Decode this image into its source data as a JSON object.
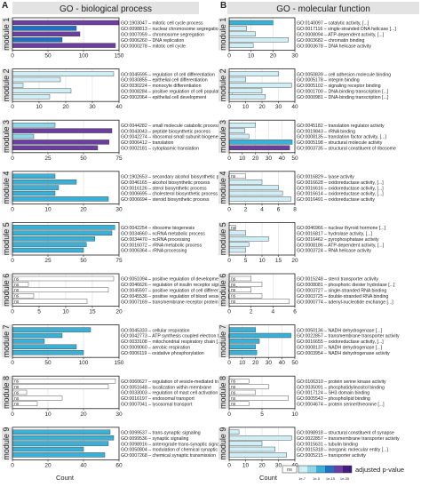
{
  "panels": [
    {
      "letter": "A",
      "title": "GO - biological process",
      "x_label": "Count",
      "legend": null
    },
    {
      "letter": "B",
      "title": "GO - molecular function",
      "x_label": "Count",
      "legend": {
        "ns_label": "ns",
        "title": "adjusted p-value",
        "ticks": [
          "1e-7",
          "1e-5",
          "1e-15",
          "1e-35"
        ]
      }
    }
  ],
  "colors": {
    "ns": "#ffffff",
    "light": "#cfeef5",
    "medium": "#8fd6e8",
    "teal": "#3bb0d6",
    "blue": "#1f6fc2",
    "purple": "#6a3fa0",
    "dark_purple": "#3f1d7a",
    "border": "#222222",
    "grid": "#dddddd"
  },
  "chart_data": [
    {
      "type": "bar",
      "orientation": "horizontal",
      "panel": "A",
      "title": "GO - biological process",
      "xlabel": "Count",
      "modules": [
        {
          "name": "module 1",
          "xlim": [
            0,
            150
          ],
          "xticks": [
            "0",
            "50",
            "100",
            "150"
          ],
          "terms": [
            {
              "label": "GO:1903047 – mitotic cell cycle process",
              "value": 150,
              "color": "purple"
            },
            {
              "label": "GO:0098813 – nuclear chromosome segregation",
              "value": 90,
              "color": "blue"
            },
            {
              "label": "GO:0007059 – chromosome segregation",
              "value": 95,
              "color": "purple"
            },
            {
              "label": "GO:0006260 – DNA replication",
              "value": 70,
              "color": "blue"
            },
            {
              "label": "GO:0000278 – mitotic cell cycle",
              "value": 145,
              "color": "purple"
            }
          ]
        },
        {
          "name": "module 2",
          "xlim": [
            0,
            40
          ],
          "xticks": [
            "0",
            "10",
            "20",
            "30",
            "40"
          ],
          "terms": [
            {
              "label": "GO:0045595 – regulation of cell differentiation",
              "value": 38,
              "color": "light"
            },
            {
              "label": "GO:0030855 – epithelial cell differentiation",
              "value": 18,
              "color": "light"
            },
            {
              "label": "GO:0030224 – monocyte differentiation",
              "value": 4,
              "color": "light"
            },
            {
              "label": "GO:0008284 – positive regulation of cell population [...]",
              "value": 22,
              "color": "light"
            },
            {
              "label": "GO:0002064 – epithelial cell development",
              "value": 14,
              "color": "light"
            }
          ]
        },
        {
          "name": "module 3",
          "xlim": [
            0,
            75
          ],
          "xticks": [
            "0",
            "25",
            "50",
            "75"
          ],
          "terms": [
            {
              "label": "GO:0044282 – small molecule catabolic process",
              "value": 30,
              "color": "medium"
            },
            {
              "label": "GO:0043043 – peptide biosynthetic process",
              "value": 70,
              "color": "purple"
            },
            {
              "label": "GO:0042274 – ribosomal small subunit biogenesis",
              "value": 15,
              "color": "medium"
            },
            {
              "label": "GO:0006412 – translation",
              "value": 68,
              "color": "purple"
            },
            {
              "label": "GO:0002181 – cytoplasmic translation",
              "value": 60,
              "color": "purple"
            }
          ]
        },
        {
          "name": "module 4",
          "xlim": [
            0,
            30
          ],
          "xticks": [
            "0",
            "10",
            "20",
            "30"
          ],
          "terms": [
            {
              "label": "GO:1902653 – secondary alcohol biosynthetic process",
              "value": 12,
              "color": "teal"
            },
            {
              "label": "GO:0046165 – alcohol biosynthetic process",
              "value": 18,
              "color": "teal"
            },
            {
              "label": "GO:0016126 – sterol biosynthetic process",
              "value": 13,
              "color": "teal"
            },
            {
              "label": "GO:0006695 – cholesterol biosynthetic process",
              "value": 12,
              "color": "teal"
            },
            {
              "label": "GO:0006694 – steroid biosynthetic process",
              "value": 27,
              "color": "teal"
            }
          ]
        },
        {
          "name": "module 5",
          "xlim": [
            0,
            75
          ],
          "xticks": [
            "0",
            "25",
            "50",
            "75"
          ],
          "terms": [
            {
              "label": "GO:0042254 – ribosome biogenesis",
              "value": 72,
              "color": "teal"
            },
            {
              "label": "GO:0034660 – ncRNA metabolic process",
              "value": 70,
              "color": "teal"
            },
            {
              "label": "GO:0034470 – ncRNA processing",
              "value": 58,
              "color": "teal"
            },
            {
              "label": "GO:0016072 – rRNA metabolic process",
              "value": 52,
              "color": "teal"
            },
            {
              "label": "GO:0006364 – rRNA processing",
              "value": 50,
              "color": "teal"
            }
          ]
        },
        {
          "name": "module 6",
          "xlim": [
            0,
            20
          ],
          "xticks": [
            "0",
            "5",
            "10",
            "15",
            "20"
          ],
          "terms": [
            {
              "label": "GO:0051094 – positive regulation of developmental [...]",
              "value": 19,
              "color": "ns"
            },
            {
              "label": "GO:0046626 – regulation of insulin receptor signaling [...]",
              "value": 3,
              "color": "ns"
            },
            {
              "label": "GO:0045597 – positive regulation of cell differentiation",
              "value": 18,
              "color": "ns"
            },
            {
              "label": "GO:0045536 – positive regulation of blood vessel [...]",
              "value": 4,
              "color": "ns"
            },
            {
              "label": "GO:0007169 – transmembrane receptor protein [...]",
              "value": 14,
              "color": "ns"
            }
          ]
        },
        {
          "name": "module 7",
          "xlim": [
            0,
            150
          ],
          "xticks": [
            "0",
            "50",
            "100",
            "150"
          ],
          "terms": [
            {
              "label": "GO:0045333 – cellular respiration",
              "value": 110,
              "color": "teal"
            },
            {
              "label": "GO:0042773 – ATP synthesis coupled electron transport",
              "value": 70,
              "color": "teal"
            },
            {
              "label": "GO:0033108 – mitochondrial respiratory chain [...]",
              "value": 45,
              "color": "teal"
            },
            {
              "label": "GO:0009060 – aerobic respiration",
              "value": 90,
              "color": "teal"
            },
            {
              "label": "GO:0006119 – oxidative phosphorylation",
              "value": 100,
              "color": "teal"
            }
          ]
        },
        {
          "name": "module 8",
          "xlim": [
            0,
            30
          ],
          "xticks": [
            "0",
            "10",
            "20",
            "30"
          ],
          "terms": [
            {
              "label": "GO:0060627 – regulation of vesicle-mediated transport",
              "value": 29,
              "color": "ns"
            },
            {
              "label": "GO:0051648 – localization within membrane",
              "value": 27,
              "color": "ns"
            },
            {
              "label": "GO:0033003 – regulation of mast cell activation",
              "value": 4,
              "color": "ns"
            },
            {
              "label": "GO:0016197 – endosomal transport",
              "value": 14,
              "color": "ns"
            },
            {
              "label": "GO:0007041 – lysosomal transport",
              "value": 7,
              "color": "ns"
            }
          ]
        },
        {
          "name": "module 9",
          "xlim": [
            0,
            60
          ],
          "xticks": [
            "0",
            "20",
            "40",
            "60"
          ],
          "terms": [
            {
              "label": "GO:0099537 – trans-synaptic signaling",
              "value": 55,
              "color": "teal"
            },
            {
              "label": "GO:0099536 – synaptic signaling",
              "value": 57,
              "color": "teal"
            },
            {
              "label": "GO:0098916 – anterograde trans-synaptic signaling",
              "value": 54,
              "color": "teal"
            },
            {
              "label": "GO:0050804 – modulation of chemical synaptic [...]",
              "value": 40,
              "color": "teal"
            },
            {
              "label": "GO:0007268 – chemical synaptic transmission",
              "value": 52,
              "color": "teal"
            }
          ]
        }
      ]
    },
    {
      "type": "bar",
      "orientation": "horizontal",
      "panel": "B",
      "title": "GO - molecular function",
      "xlabel": "Count",
      "modules": [
        {
          "name": "module 1",
          "xlim": [
            0,
            30
          ],
          "xticks": [
            "0",
            "10",
            "20",
            "30"
          ],
          "terms": [
            {
              "label": "GO:0140097 – catalytic activity, [...]",
              "value": 20,
              "color": "teal"
            },
            {
              "label": "GO:0017116 – single-stranded DNA helicase [...]",
              "value": 8,
              "color": "light"
            },
            {
              "label": "GO:0008094 – ATP-dependent activity, [...]",
              "value": 12,
              "color": "light"
            },
            {
              "label": "GO:0003682 – chromatin binding",
              "value": 27,
              "color": "light"
            },
            {
              "label": "GO:0003678 – DNA helicase activity",
              "value": 11,
              "color": "light"
            }
          ]
        },
        {
          "name": "module 2",
          "xlim": [
            0,
            40
          ],
          "xticks": [
            "0",
            "10",
            "20",
            "30",
            "40"
          ],
          "terms": [
            {
              "label": "GO:0050839 – cell adhesion molecule binding",
              "value": 30,
              "color": "light"
            },
            {
              "label": "GO:0005178 – integrin binding",
              "value": 10,
              "color": "light"
            },
            {
              "label": "GO:0005102 – signaling receptor binding",
              "value": 38,
              "color": "light"
            },
            {
              "label": "GO:0001700 – DNA-binding transcription [...]",
              "value": 20,
              "color": "light"
            },
            {
              "label": "GO:0000981 – DNA-binding transcription [...]",
              "value": 22,
              "color": "light"
            }
          ]
        },
        {
          "name": "module 3",
          "xlim": [
            0,
            50
          ],
          "xticks": [
            "0",
            "10",
            "20",
            "30",
            "40",
            "50"
          ],
          "terms": [
            {
              "label": "GO:0045182 – translation regulator activity",
              "value": 20,
              "color": "light"
            },
            {
              "label": "GO:0019843 – rRNA binding",
              "value": 12,
              "color": "light"
            },
            {
              "label": "GO:0008135 – translation factor activity, [...]",
              "value": 15,
              "color": "light"
            },
            {
              "label": "GO:0005198 – structural molecule activity",
              "value": 48,
              "color": "teal"
            },
            {
              "label": "GO:0003735 – structural constituent of ribosome",
              "value": 46,
              "color": "purple"
            }
          ]
        },
        {
          "name": "module 4",
          "xlim": [
            0,
            8
          ],
          "xticks": [
            "0",
            "2",
            "4",
            "6",
            "8"
          ],
          "terms": [
            {
              "label": "GO:0016829 – lyase activity",
              "value": 2,
              "color": "ns"
            },
            {
              "label": "GO:0016628 – oxidoreductase activity, [...]",
              "value": 4,
              "color": "light"
            },
            {
              "label": "GO:0016616 – oxidoreductase activity, [...]",
              "value": 6,
              "color": "light"
            },
            {
              "label": "GO:0016614 – oxidoreductase activity, [...]",
              "value": 6.5,
              "color": "light"
            },
            {
              "label": "GO:0016491 – oxidoreductase activity",
              "value": 7.5,
              "color": "light"
            }
          ]
        },
        {
          "name": "module 5",
          "xlim": [
            0,
            20
          ],
          "xticks": [
            "0",
            "5",
            "10",
            "15",
            "20"
          ],
          "terms": [
            {
              "label": "GO:0046966 – nuclear thyroid hormone [...]",
              "value": 2,
              "color": "ns"
            },
            {
              "label": "GO:0016817 – hydrolase activity, [...]",
              "value": 5,
              "color": "light"
            },
            {
              "label": "GO:0016462 – pyrophosphatase activity",
              "value": 12,
              "color": "light"
            },
            {
              "label": "GO:0008186 – ATP-dependent activity, [...]",
              "value": 6,
              "color": "light"
            },
            {
              "label": "GO:0003724 – RNA helicase activity",
              "value": 5,
              "color": "light"
            }
          ]
        },
        {
          "name": "module 6",
          "xlim": [
            0,
            6
          ],
          "xticks": [
            "0",
            "2",
            "4",
            "6"
          ],
          "terms": [
            {
              "label": "GO:0015248 – sterol transporter activity",
              "value": 2,
              "color": "ns"
            },
            {
              "label": "GO:0008081 – phosphoric diester hydrolase [...]",
              "value": 3,
              "color": "ns"
            },
            {
              "label": "GO:0003727 – single-stranded RNA binding",
              "value": 2,
              "color": "ns"
            },
            {
              "label": "GO:0003725 – double-stranded RNA binding",
              "value": 3,
              "color": "ns"
            },
            {
              "label": "GO:0000774 – adenyl-nucleotide exchange [...]",
              "value": 5.5,
              "color": "ns"
            }
          ]
        },
        {
          "name": "module 7",
          "xlim": [
            0,
            50
          ],
          "xticks": [
            "0",
            "10",
            "20",
            "30",
            "40",
            "50"
          ],
          "terms": [
            {
              "label": "GO:0050136 – NADH dehydrogenase [...]",
              "value": 20,
              "color": "teal"
            },
            {
              "label": "GO:0022857 – transmembrane transporter activity",
              "value": 47,
              "color": "teal"
            },
            {
              "label": "GO:0016655 – oxidoreductase activity, [...]",
              "value": 23,
              "color": "teal"
            },
            {
              "label": "GO:0008137 – NADH dehydrogenase [...]",
              "value": 20,
              "color": "teal"
            },
            {
              "label": "GO:0003954 – NADH dehydrogenase activity",
              "value": 21,
              "color": "teal"
            }
          ]
        },
        {
          "name": "module 8",
          "xlim": [
            0,
            10
          ],
          "xticks": [
            "0",
            "5",
            "10"
          ],
          "terms": [
            {
              "label": "GO:0106310 – protein serine kinase activity",
              "value": 3,
              "color": "ns"
            },
            {
              "label": "GO:0035091 – phosphatidylinositol binding",
              "value": 6,
              "color": "ns"
            },
            {
              "label": "GO:0017124 – SH3 domain binding",
              "value": 4,
              "color": "ns"
            },
            {
              "label": "GO:0005543 – phospholipid binding",
              "value": 9,
              "color": "ns"
            },
            {
              "label": "GO:0004674 – protein serine/threonine [...]",
              "value": 3,
              "color": "ns"
            }
          ]
        },
        {
          "name": "module 9",
          "xlim": [
            0,
            40
          ],
          "xticks": [
            "0",
            "10",
            "20",
            "30",
            "40"
          ],
          "terms": [
            {
              "label": "GO:0098918 – structural constituent of synapse",
              "value": 6,
              "color": "light"
            },
            {
              "label": "GO:0022857 – transmembrane transporter activity",
              "value": 38,
              "color": "light"
            },
            {
              "label": "GO:0015631 – tubulin binding",
              "value": 20,
              "color": "light"
            },
            {
              "label": "GO:0015318 – inorganic molecular entity [...]",
              "value": 28,
              "color": "light"
            },
            {
              "label": "GO:0005215 – transporter activity",
              "value": 35,
              "color": "light"
            }
          ]
        }
      ]
    }
  ]
}
